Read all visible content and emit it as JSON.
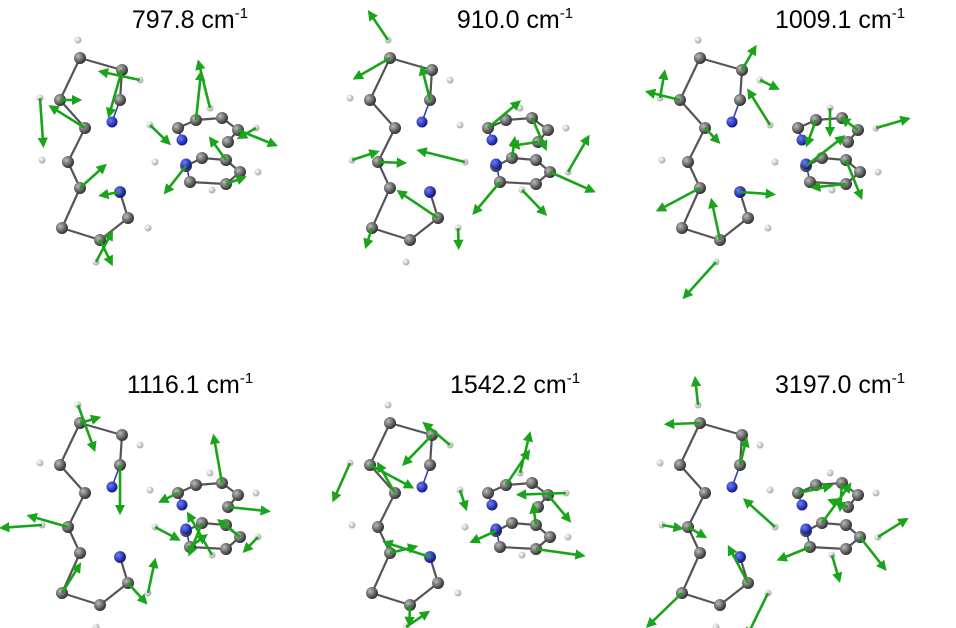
{
  "panels": [
    {
      "frequency": "797.8 cm",
      "exponent": "-1"
    },
    {
      "frequency": "910.0 cm",
      "exponent": "-1"
    },
    {
      "frequency": "1009.1 cm",
      "exponent": "-1"
    },
    {
      "frequency": "1116.1 cm",
      "exponent": "-1"
    },
    {
      "frequency": "1542.2 cm",
      "exponent": "-1"
    },
    {
      "frequency": "3197.0 cm",
      "exponent": "-1"
    }
  ]
}
